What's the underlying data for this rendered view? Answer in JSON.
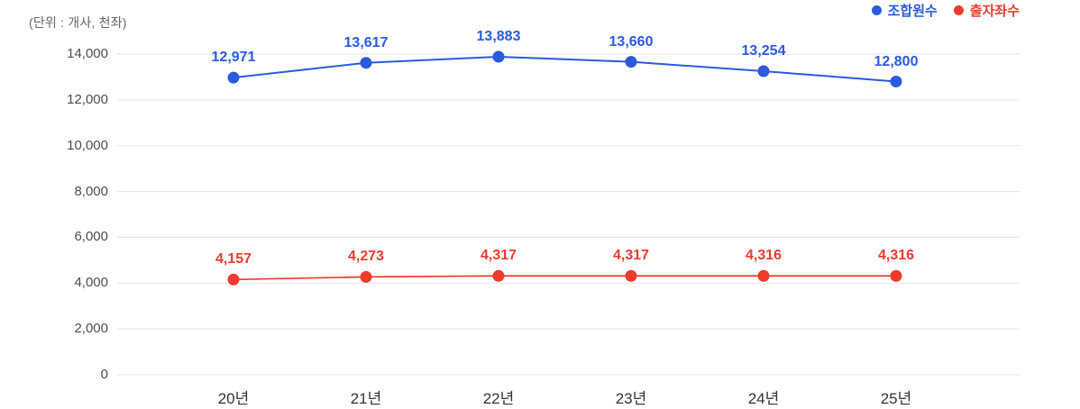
{
  "unit_label": "(단위 : 개사, 천좌)",
  "legend": [
    {
      "key": "members",
      "label": "조합원수",
      "color": "#2B5BDC"
    },
    {
      "key": "shares",
      "label": "출자좌수",
      "color": "#EE3B2B"
    }
  ],
  "chart_data": {
    "type": "line",
    "title": "",
    "unit_label": "(단위 : 개사, 천좌)",
    "categories": [
      "20년",
      "21년",
      "22년",
      "23년",
      "24년",
      "25년"
    ],
    "series": [
      {
        "key": "members",
        "name": "조합원수",
        "color": "#2B5BDC",
        "values": [
          12971,
          13617,
          13883,
          13660,
          13254,
          12800
        ],
        "labels": [
          "12,971",
          "13,617",
          "13,883",
          "13,660",
          "13,254",
          "12,800"
        ]
      },
      {
        "key": "shares",
        "name": "출자좌수",
        "color": "#EE3B2B",
        "values": [
          4157,
          4273,
          4317,
          4317,
          4316,
          4316
        ],
        "labels": [
          "4,157",
          "4,273",
          "4,317",
          "4,317",
          "4,316",
          "4,316"
        ]
      }
    ],
    "ylim": [
      0,
      14000
    ],
    "yticks": [
      0,
      2000,
      4000,
      6000,
      8000,
      10000,
      12000,
      14000
    ],
    "ytick_labels": [
      "0",
      "2,000",
      "4,000",
      "6,000",
      "8,000",
      "10,000",
      "12,000",
      "14,000"
    ],
    "grid": true,
    "legend_position": "top-right"
  },
  "colors": {
    "grid": "#E3E3E3",
    "axis_text": "#4D4D4D",
    "x_axis_text": "#333333",
    "unit_text": "#666666",
    "background": "#FFFFFF"
  }
}
